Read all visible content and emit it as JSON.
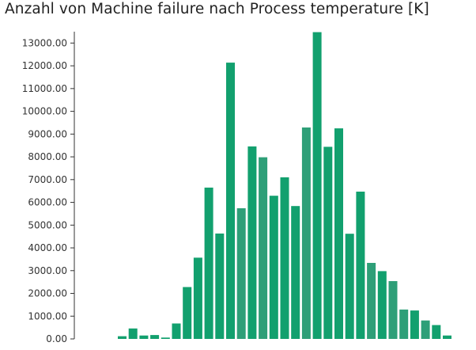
{
  "chart_data": {
    "type": "bar",
    "title": "Anzahl von Machine failure nach Process temperature [K]",
    "xlabel": "",
    "ylabel": "",
    "ylim": [
      0,
      13500
    ],
    "yticks": [
      "0.00",
      "1000.00",
      "2000.00",
      "3000.00",
      "4000.00",
      "5000.00",
      "6000.00",
      "7000.00",
      "8000.00",
      "9000.00",
      "10000.00",
      "11000.00",
      "12000.00",
      "13000.00"
    ],
    "ytick_values": [
      0,
      1000,
      2000,
      3000,
      4000,
      5000,
      6000,
      7000,
      8000,
      9000,
      10000,
      11000,
      12000,
      13000
    ],
    "values": [
      120,
      460,
      150,
      170,
      60,
      680,
      2280,
      3570,
      6650,
      4630,
      12140,
      5740,
      8460,
      7980,
      6290,
      7100,
      5840,
      9290,
      13480,
      8440,
      9250,
      4620,
      6470,
      3340,
      2980,
      2540,
      1290,
      1250,
      810,
      610,
      150
    ],
    "colors": {
      "dark": "#12a06e",
      "light": "#2e9f78",
      "axis": "#333333"
    },
    "light_indices": [
      11,
      13,
      17,
      23,
      25,
      26,
      28
    ]
  }
}
